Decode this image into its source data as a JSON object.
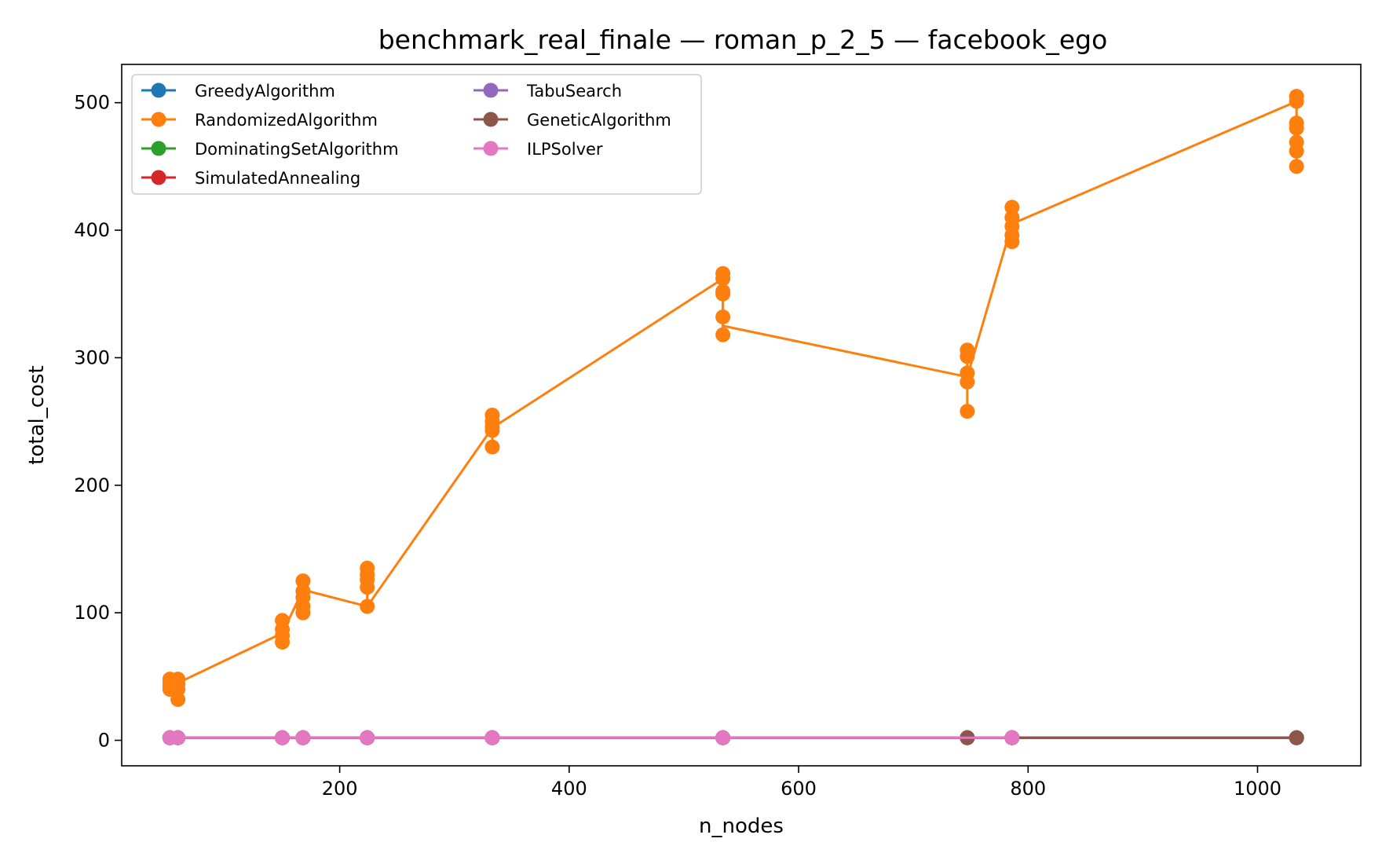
{
  "chart_data": {
    "type": "line",
    "title": "benchmark_real_finale — roman_p_2_5 — facebook_ego",
    "xlabel": "n_nodes",
    "ylabel": "total_cost",
    "xlim": [
      10,
      1090
    ],
    "ylim": [
      -20,
      530
    ],
    "xticks": [
      200,
      400,
      600,
      800,
      1000
    ],
    "yticks": [
      0,
      100,
      200,
      300,
      400,
      500
    ],
    "grid": false,
    "legend_position": "top-left",
    "legend_columns": 2,
    "series": [
      {
        "name": "GreedyAlgorithm",
        "color": "#1f77b4",
        "x": [
          52,
          59,
          150,
          168,
          224,
          333,
          534,
          747,
          786,
          1034
        ],
        "y": [
          2,
          2,
          2,
          2,
          2,
          2,
          2,
          2,
          2,
          2
        ]
      },
      {
        "name": "RandomizedAlgorithm",
        "color": "#ff7f0e",
        "x": [
          52,
          52,
          52,
          52,
          52,
          59,
          59,
          59,
          59,
          59,
          150,
          150,
          150,
          150,
          168,
          168,
          168,
          168,
          168,
          224,
          224,
          224,
          224,
          224,
          333,
          333,
          333,
          333,
          333,
          534,
          534,
          534,
          534,
          534,
          534,
          747,
          747,
          747,
          747,
          747,
          786,
          786,
          786,
          786,
          786,
          1034,
          1034,
          1034,
          1034,
          1034,
          1034,
          1034
        ],
        "y": [
          48,
          45,
          43,
          41,
          40,
          48,
          45,
          44,
          40,
          32,
          94,
          87,
          82,
          77,
          125,
          117,
          112,
          105,
          100,
          135,
          130,
          126,
          120,
          105,
          255,
          250,
          246,
          243,
          230,
          366,
          362,
          352,
          350,
          332,
          318,
          306,
          301,
          288,
          281,
          258,
          418,
          410,
          403,
          396,
          391,
          505,
          501,
          484,
          480,
          469,
          462,
          450
        ],
        "line_x": [
          52,
          59,
          150,
          168,
          224,
          333,
          534,
          534,
          747,
          786,
          1034
        ],
        "line_y": [
          44,
          45,
          84,
          118,
          105,
          245,
          362,
          325,
          285,
          405,
          501
        ]
      },
      {
        "name": "DominatingSetAlgorithm",
        "color": "#2ca02c",
        "x": [
          52,
          59,
          150,
          168,
          224,
          333,
          534,
          747,
          786,
          1034
        ],
        "y": [
          2,
          2,
          2,
          2,
          2,
          2,
          2,
          2,
          2,
          2
        ]
      },
      {
        "name": "SimulatedAnnealing",
        "color": "#d62728",
        "x": [
          52,
          59,
          150,
          168,
          224,
          333,
          534,
          747,
          786,
          1034
        ],
        "y": [
          2,
          2,
          2,
          2,
          2,
          2,
          2,
          2,
          2,
          2
        ]
      },
      {
        "name": "TabuSearch",
        "color": "#9467bd",
        "x": [
          52,
          59,
          150,
          168,
          224,
          333,
          534,
          747,
          786,
          1034
        ],
        "y": [
          2,
          2,
          2,
          2,
          2,
          2,
          2,
          2,
          2,
          2
        ]
      },
      {
        "name": "GeneticAlgorithm",
        "color": "#8c564b",
        "x": [
          52,
          59,
          150,
          168,
          224,
          333,
          534,
          747,
          786,
          1034
        ],
        "y": [
          2,
          2,
          2,
          2,
          2,
          2,
          2,
          2,
          2,
          2
        ]
      },
      {
        "name": "ILPSolver",
        "color": "#e377c2",
        "x": [
          52,
          59,
          150,
          168,
          224,
          333,
          534,
          786
        ],
        "y": [
          2,
          2,
          2,
          2,
          2,
          2,
          2,
          2
        ]
      }
    ]
  }
}
